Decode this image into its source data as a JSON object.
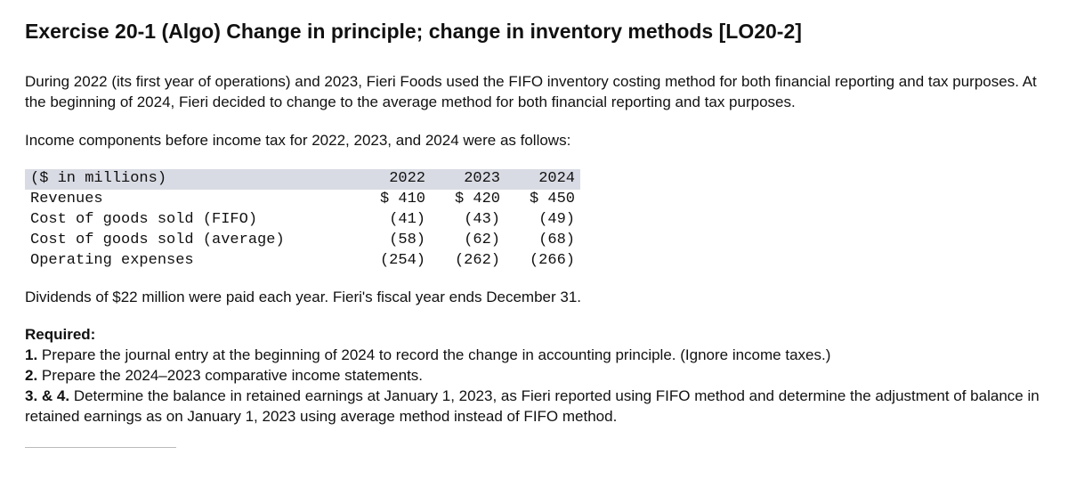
{
  "title": "Exercise 20-1 (Algo) Change in principle; change in inventory methods [LO20-2]",
  "intro": "During 2022 (its first year of operations) and 2023, Fieri Foods used the FIFO inventory costing method for both financial reporting and tax purposes. At the beginning of 2024, Fieri decided to change to the average method for both financial reporting and tax purposes.",
  "lead_in": "Income components before income tax for 2022, 2023, and 2024 were as follows:",
  "table": {
    "header_label": "($ in millions)",
    "year_cols": [
      "2022",
      "2023",
      "2024"
    ],
    "rows": [
      {
        "label": "Revenues",
        "cells": [
          "$ 410",
          "$ 420",
          "$ 450"
        ]
      },
      {
        "label": "Cost of goods sold (FIFO)",
        "cells": [
          "(41)",
          "(43)",
          "(49)"
        ]
      },
      {
        "label": "Cost of goods sold (average)",
        "cells": [
          "(58)",
          "(62)",
          "(68)"
        ]
      },
      {
        "label": "Operating expenses",
        "cells": [
          "(254)",
          "(262)",
          "(266)"
        ]
      }
    ],
    "header_bg": "#d9dbe4"
  },
  "dividends": "Dividends of $22 million were paid each year. Fieri's fiscal year ends December 31.",
  "required_head": "Required:",
  "requirements": [
    "1. Prepare the journal entry at the beginning of 2024 to record the change in accounting principle. (Ignore income taxes.)",
    "2. Prepare the 2024–2023 comparative income statements.",
    "3. & 4. Determine the balance in retained earnings at January 1, 2023, as Fieri reported using FIFO method and determine the adjustment of balance in retained earnings as on January 1, 2023 using average method instead of FIFO method."
  ]
}
